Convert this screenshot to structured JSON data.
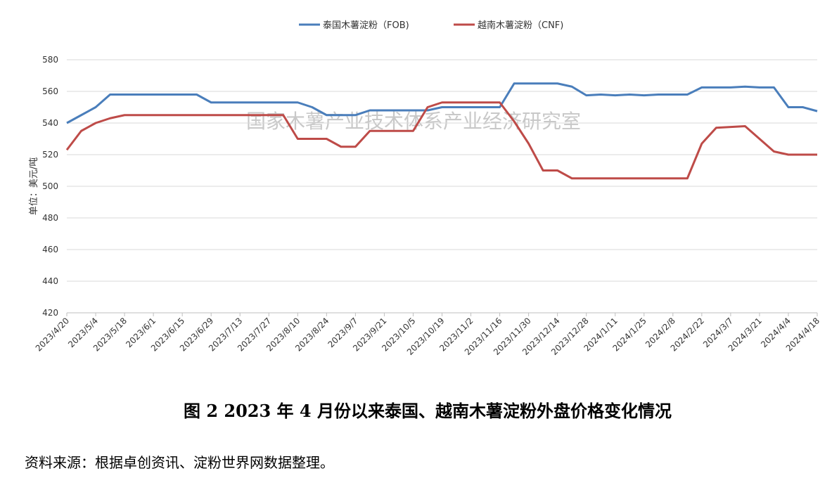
{
  "chart_data": {
    "type": "line",
    "watermark": "国家木薯产业技术体系产业经济研究室",
    "y_label": "单位：美元/吨",
    "caption": "图 2   2023 年 4 月份以来泰国、越南木薯淀粉外盘价格变化情况",
    "source": "资料来源：根据卓创资讯、淀粉世界网数据整理。",
    "categories": [
      "2023/4/20",
      null,
      "2023/5/4",
      null,
      "2023/5/18",
      null,
      "2023/6/1",
      null,
      "2023/6/15",
      null,
      "2023/6/29",
      null,
      "2023/7/13",
      null,
      "2023/7/27",
      null,
      "2023/8/10",
      null,
      "2023/8/24",
      null,
      "2023/9/7",
      null,
      "2023/9/21",
      null,
      "2023/10/5",
      null,
      "2023/10/19",
      null,
      "2023/11/2",
      null,
      "2023/11/16",
      null,
      "2023/11/30",
      null,
      "2023/12/14",
      null,
      "2023/12/28",
      null,
      "2024/1/11",
      null,
      "2024/1/25",
      null,
      "2024/2/8",
      null,
      "2024/2/22",
      null,
      "2024/3/7",
      null,
      "2024/3/21",
      null,
      "2024/4/4",
      null,
      "2024/4/18"
    ],
    "series": [
      {
        "name": "泰国木薯淀粉（FOB)",
        "color": "#4a7ebb",
        "values": [
          540,
          545,
          550,
          558,
          558,
          558,
          558,
          558,
          558,
          558,
          553,
          553,
          553,
          553,
          553,
          553,
          553,
          550,
          545,
          545,
          545,
          548,
          548,
          548,
          548,
          548,
          550,
          550,
          550,
          550,
          550,
          565,
          565,
          565,
          565,
          563,
          557.5,
          558,
          557.5,
          558,
          557.5,
          558,
          558,
          558,
          562.5,
          562.5,
          562.5,
          563,
          562.5,
          562.5,
          550,
          550,
          547.5
        ]
      },
      {
        "name": "越南木薯淀粉（CNF)",
        "color": "#be4b48",
        "values": [
          523,
          535,
          540,
          543,
          545,
          545,
          545,
          545,
          545,
          545,
          545,
          545,
          545,
          545,
          545,
          545,
          530,
          530,
          530,
          525,
          525,
          535,
          535,
          535,
          535,
          550,
          553,
          553,
          553,
          553,
          553,
          541,
          527,
          510,
          510,
          505,
          505,
          505,
          505,
          505,
          505,
          505,
          505,
          505,
          527,
          537,
          537.5,
          538,
          530,
          522,
          520,
          520,
          520
        ]
      }
    ],
    "ylim": [
      420,
      580
    ],
    "yticks": [
      420,
      440,
      460,
      480,
      500,
      520,
      540,
      560,
      580
    ],
    "grid": true,
    "legend": "top"
  }
}
